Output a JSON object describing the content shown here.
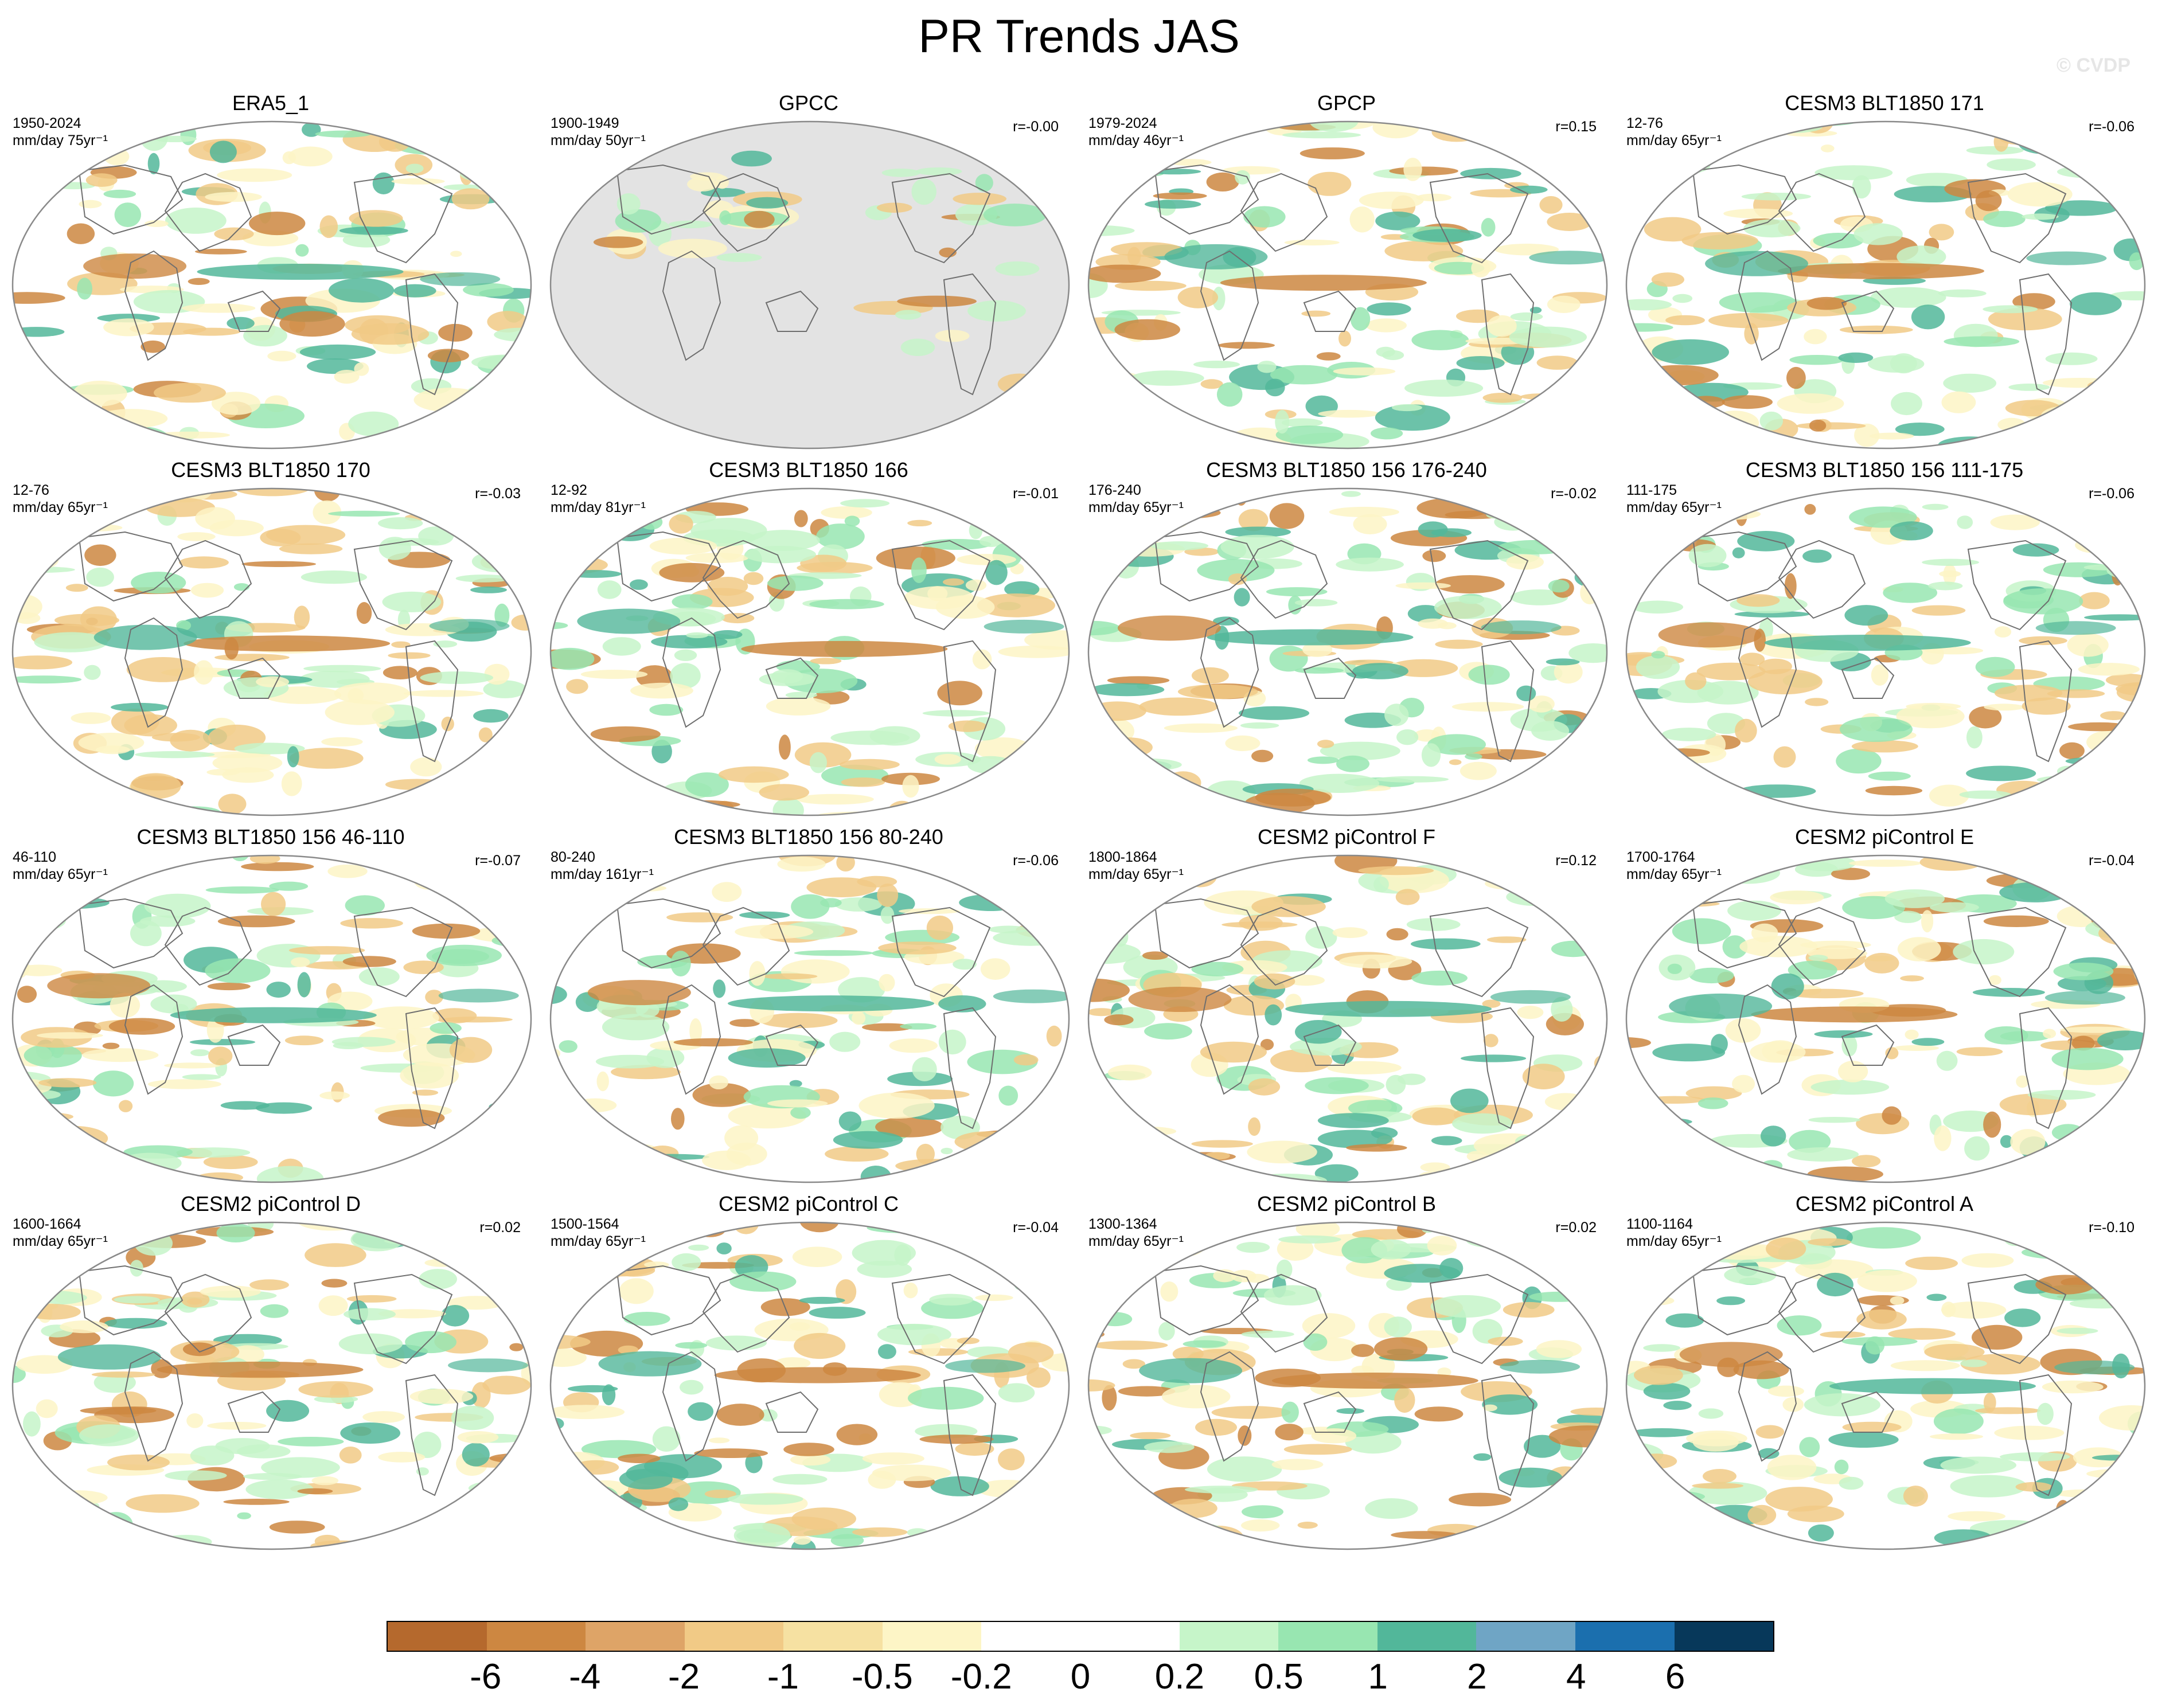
{
  "title": "PR Trends JAS",
  "watermark": "© CVDP",
  "panels": [
    {
      "title": "ERA5_1",
      "years": "1950-2024",
      "units": "mm/day 75yr⁻¹",
      "r": "",
      "grey": false
    },
    {
      "title": "GPCC",
      "years": "1900-1949",
      "units": "mm/day 50yr⁻¹",
      "r": "r=-0.00",
      "grey": true
    },
    {
      "title": "GPCP",
      "years": "1979-2024",
      "units": "mm/day 46yr⁻¹",
      "r": "r=0.15",
      "grey": false
    },
    {
      "title": "CESM3 BLT1850 171",
      "years": "12-76",
      "units": "mm/day 65yr⁻¹",
      "r": "r=-0.06",
      "grey": false
    },
    {
      "title": "CESM3 BLT1850 170",
      "years": "12-76",
      "units": "mm/day 65yr⁻¹",
      "r": "r=-0.03",
      "grey": false
    },
    {
      "title": "CESM3 BLT1850 166",
      "years": "12-92",
      "units": "mm/day 81yr⁻¹",
      "r": "r=-0.01",
      "grey": false
    },
    {
      "title": "CESM3 BLT1850 156 176-240",
      "years": "176-240",
      "units": "mm/day 65yr⁻¹",
      "r": "r=-0.02",
      "grey": false
    },
    {
      "title": "CESM3 BLT1850 156 111-175",
      "years": "111-175",
      "units": "mm/day 65yr⁻¹",
      "r": "r=-0.06",
      "grey": false
    },
    {
      "title": "CESM3 BLT1850 156 46-110",
      "years": "46-110",
      "units": "mm/day 65yr⁻¹",
      "r": "r=-0.07",
      "grey": false
    },
    {
      "title": "CESM3 BLT1850 156 80-240",
      "years": "80-240",
      "units": "mm/day 161yr⁻¹",
      "r": "r=-0.06",
      "grey": false
    },
    {
      "title": "CESM2 piControl F",
      "years": "1800-1864",
      "units": "mm/day 65yr⁻¹",
      "r": "r=0.12",
      "grey": false
    },
    {
      "title": "CESM2 piControl E",
      "years": "1700-1764",
      "units": "mm/day 65yr⁻¹",
      "r": "r=-0.04",
      "grey": false
    },
    {
      "title": "CESM2 piControl D",
      "years": "1600-1664",
      "units": "mm/day 65yr⁻¹",
      "r": "r=0.02",
      "grey": false
    },
    {
      "title": "CESM2 piControl C",
      "years": "1500-1564",
      "units": "mm/day 65yr⁻¹",
      "r": "r=-0.04",
      "grey": false
    },
    {
      "title": "CESM2 piControl B",
      "years": "1300-1364",
      "units": "mm/day 65yr⁻¹",
      "r": "r=0.02",
      "grey": false
    },
    {
      "title": "CESM2 piControl A",
      "years": "1100-1164",
      "units": "mm/day 65yr⁻¹",
      "r": "r=-0.10",
      "grey": false
    }
  ],
  "colorbar": {
    "colors": [
      "#b5692d",
      "#cd8741",
      "#dea467",
      "#f1ca86",
      "#f6e1a2",
      "#fdf5c6",
      "#ffffff",
      "#ffffff",
      "#c6f5c9",
      "#98e6b1",
      "#52b79a",
      "#6fa5c5",
      "#1b6fae",
      "#07385a"
    ],
    "labels": [
      "-6",
      "-4",
      "-2",
      "-1",
      "-0.5",
      "-0.2",
      "0",
      "0.2",
      "0.5",
      "1",
      "2",
      "4",
      "6"
    ]
  },
  "palette": {
    "brown": "#cd8741",
    "tan": "#f1ca86",
    "cream": "#fdf5c6",
    "lightgreen": "#c6f5c9",
    "green": "#98e6b1",
    "teal": "#52b79a",
    "blue": "#6fa5c5",
    "darkblue": "#1b6fae",
    "land_grey": "#e3e3e3"
  }
}
